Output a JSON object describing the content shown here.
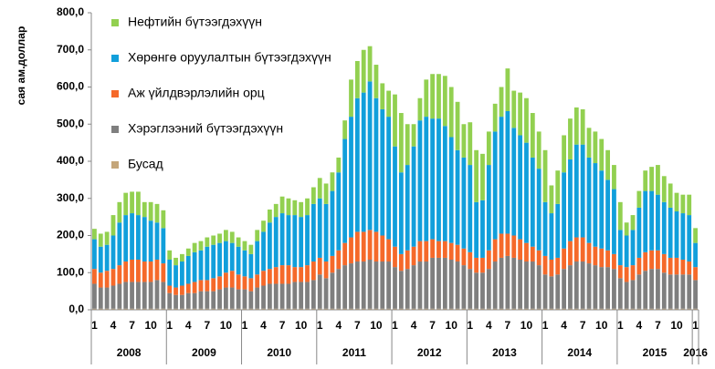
{
  "chart_data": {
    "type": "stacked_bar",
    "y_label": "сая ам.доллар",
    "categories": [
      "1",
      null,
      null,
      "4",
      null,
      null,
      "7",
      null,
      null,
      "10",
      null,
      null,
      "1",
      null,
      null,
      "4",
      null,
      null,
      "7",
      null,
      null,
      "10",
      null,
      null,
      "1",
      null,
      null,
      "4",
      null,
      null,
      "7",
      null,
      null,
      "10",
      null,
      null,
      "1",
      null,
      null,
      "4",
      null,
      null,
      "7",
      null,
      null,
      "10",
      null,
      null,
      "1",
      null,
      null,
      "4",
      null,
      null,
      "7",
      null,
      null,
      "10",
      null,
      null,
      "1",
      null,
      null,
      "4",
      null,
      null,
      "7",
      null,
      null,
      "10",
      null,
      null,
      "1",
      null,
      null,
      "4",
      null,
      null,
      "7",
      null,
      null,
      "10",
      null,
      null,
      "1",
      null,
      null,
      "4",
      null,
      null,
      "7",
      null,
      null,
      "10",
      null,
      null,
      "1"
    ],
    "years": [
      "2008",
      "2009",
      "2010",
      "2011",
      "2012",
      "2013",
      "2014",
      "2015",
      "2016"
    ],
    "ylim": [
      0,
      800
    ],
    "yticks": [
      {
        "value": 0,
        "label": "0,0"
      },
      {
        "value": 100,
        "label": "100,0"
      },
      {
        "value": 200,
        "label": "200,0"
      },
      {
        "value": 300,
        "label": "300,0"
      },
      {
        "value": 400,
        "label": "400,0"
      },
      {
        "value": 500,
        "label": "500,0"
      },
      {
        "value": 600,
        "label": "600,0"
      },
      {
        "value": 700,
        "label": "700,0"
      },
      {
        "value": 800,
        "label": "800,0"
      }
    ],
    "series": [
      {
        "name": "Нефтийн бүтээгдэхүүн",
        "color": "#92d050",
        "values": [
          28,
          35,
          35,
          55,
          55,
          60,
          58,
          63,
          40,
          50,
          50,
          48,
          25,
          20,
          20,
          20,
          25,
          25,
          25,
          25,
          25,
          30,
          30,
          25,
          25,
          25,
          30,
          30,
          35,
          35,
          45,
          45,
          40,
          40,
          45,
          45,
          55,
          55,
          50,
          40,
          50,
          100,
          100,
          115,
          95,
          90,
          70,
          70,
          140,
          160,
          110,
          60,
          60,
          100,
          120,
          120,
          135,
          135,
          130,
          90,
          115,
          140,
          125,
          90,
          75,
          80,
          115,
          100,
          115,
          120,
          120,
          100,
          140,
          75,
          90,
          100,
          110,
          100,
          95,
          80,
          85,
          85,
          80,
          65,
          75,
          35,
          40,
          45,
          55,
          65,
          80,
          70,
          65,
          50,
          50,
          55,
          40
        ]
      },
      {
        "name": "Хөрөнгө оруулалтын бүтээгдэхүүн",
        "color": "#119fdb",
        "values": [
          80,
          70,
          70,
          90,
          115,
          125,
          125,
          120,
          120,
          110,
          100,
          95,
          70,
          60,
          65,
          75,
          80,
          80,
          90,
          90,
          90,
          85,
          75,
          75,
          70,
          65,
          90,
          105,
          125,
          135,
          140,
          135,
          140,
          135,
          135,
          155,
          160,
          155,
          175,
          210,
          280,
          325,
          360,
          375,
          400,
          360,
          340,
          330,
          270,
          220,
          230,
          270,
          325,
          335,
          325,
          330,
          310,
          285,
          255,
          245,
          235,
          150,
          155,
          230,
          290,
          315,
          330,
          290,
          280,
          270,
          240,
          220,
          145,
          125,
          145,
          205,
          220,
          250,
          250,
          230,
          225,
          210,
          190,
          175,
          95,
          85,
          95,
          135,
          165,
          160,
          150,
          140,
          135,
          125,
          125,
          125,
          65
        ]
      },
      {
        "name": "Аж үйлдвэрлэлийн орц",
        "color": "#f5692a",
        "values": [
          40,
          40,
          45,
          45,
          50,
          55,
          60,
          60,
          55,
          55,
          55,
          50,
          20,
          20,
          25,
          25,
          30,
          30,
          30,
          35,
          35,
          40,
          45,
          40,
          35,
          35,
          35,
          40,
          40,
          45,
          50,
          50,
          40,
          40,
          45,
          50,
          45,
          45,
          45,
          50,
          60,
          70,
          80,
          80,
          80,
          80,
          70,
          60,
          55,
          45,
          50,
          50,
          55,
          55,
          50,
          45,
          45,
          45,
          45,
          45,
          45,
          40,
          40,
          50,
          60,
          65,
          60,
          60,
          55,
          50,
          40,
          40,
          50,
          45,
          45,
          55,
          65,
          65,
          65,
          55,
          50,
          50,
          45,
          40,
          35,
          40,
          40,
          45,
          50,
          50,
          50,
          50,
          45,
          45,
          40,
          35,
          35
        ]
      },
      {
        "name": "Хэрэглээний бүтээгдэхүүн",
        "color": "#7f7f7f",
        "values": [
          67,
          57,
          57,
          62,
          67,
          72,
          72,
          72,
          72,
          72,
          77,
          72,
          42,
          37,
          37,
          42,
          42,
          47,
          47,
          47,
          52,
          57,
          57,
          52,
          52,
          47,
          57,
          62,
          67,
          67,
          67,
          67,
          72,
          72,
          72,
          77,
          92,
          82,
          97,
          107,
          117,
          122,
          127,
          127,
          132,
          127,
          127,
          127,
          112,
          102,
          107,
          117,
          127,
          127,
          137,
          137,
          137,
          132,
          127,
          117,
          107,
          97,
          97,
          107,
          127,
          137,
          142,
          137,
          132,
          127,
          127,
          117,
          92,
          87,
          92,
          107,
          117,
          127,
          127,
          122,
          117,
          112,
          112,
          107,
          82,
          72,
          77,
          92,
          102,
          107,
          107,
          97,
          92,
          92,
          92,
          92,
          77
        ]
      },
      {
        "name": "Бусад",
        "color": "#c4a67a",
        "values": [
          3,
          3,
          3,
          3,
          3,
          3,
          3,
          3,
          3,
          3,
          3,
          3,
          3,
          3,
          3,
          3,
          3,
          3,
          3,
          3,
          3,
          3,
          3,
          3,
          3,
          3,
          3,
          3,
          3,
          3,
          3,
          3,
          3,
          3,
          3,
          3,
          3,
          3,
          3,
          3,
          3,
          3,
          3,
          3,
          3,
          3,
          3,
          3,
          3,
          3,
          3,
          3,
          3,
          3,
          3,
          3,
          3,
          3,
          3,
          3,
          3,
          3,
          3,
          3,
          3,
          3,
          3,
          3,
          3,
          3,
          3,
          3,
          3,
          3,
          3,
          3,
          3,
          3,
          3,
          3,
          3,
          3,
          3,
          3,
          3,
          3,
          3,
          3,
          3,
          3,
          3,
          3,
          3,
          3,
          3,
          3,
          3
        ]
      }
    ]
  }
}
